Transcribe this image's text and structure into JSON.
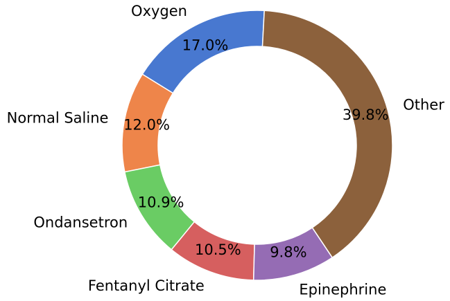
{
  "chart_data": {
    "type": "pie",
    "donut": true,
    "title": "",
    "start_angle_deg": 87,
    "direction": "counterclockwise",
    "slices": [
      {
        "label": "Oxygen",
        "value": 17.0,
        "pct_label": "17.0%",
        "color": "#4878d0"
      },
      {
        "label": "Normal Saline",
        "value": 12.0,
        "pct_label": "12.0%",
        "color": "#ee854a"
      },
      {
        "label": "Ondansetron",
        "value": 10.9,
        "pct_label": "10.9%",
        "color": "#6acc64"
      },
      {
        "label": "Fentanyl Citrate",
        "value": 10.5,
        "pct_label": "10.5%",
        "color": "#d65f5f"
      },
      {
        "label": "Epinephrine",
        "value": 9.8,
        "pct_label": "9.8%",
        "color": "#956cb4"
      },
      {
        "label": "Other",
        "value": 39.8,
        "pct_label": "39.8%",
        "color": "#8c613c"
      }
    ]
  }
}
